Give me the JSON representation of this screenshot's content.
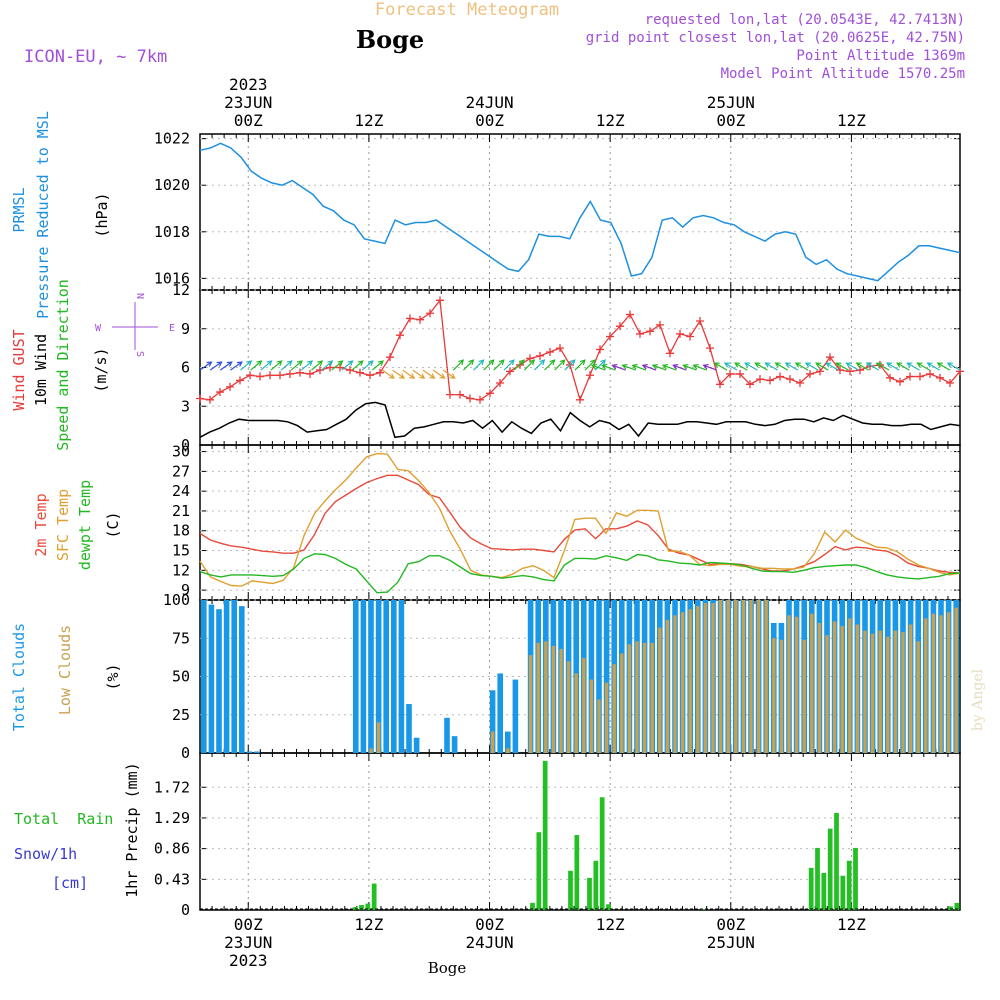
{
  "header": {
    "title": "Forecast Meteogram",
    "location": "Boge",
    "model": "ICON-EU, ~ 7km",
    "requested": "requested lon,lat (20.0543E, 42.7413N)",
    "closest": "grid point closest lon,lat (20.0625E, 42.75N)",
    "point_altitude": "Point Altitude 1369m",
    "model_altitude": "Model Point Altitude 1570.25m",
    "footer_location": "Boge",
    "credit": "by Angel"
  },
  "time_axis": {
    "start_index": -4,
    "end_index": 59,
    "top_labels": [
      {
        "i": 0,
        "lines": [
          "2023",
          "23JUN",
          "00Z"
        ]
      },
      {
        "i": 10,
        "lines": [
          "12Z"
        ]
      },
      {
        "i": 20,
        "lines": [
          "24JUN",
          "00Z"
        ]
      },
      {
        "i": 30,
        "lines": [
          "12Z"
        ]
      },
      {
        "i": 40,
        "lines": [
          "25JUN",
          "00Z"
        ]
      },
      {
        "i": 50,
        "lines": [
          "12Z"
        ]
      }
    ],
    "bottom_labels": [
      {
        "i": 0,
        "lines": [
          "00Z",
          "23JUN",
          "2023"
        ]
      },
      {
        "i": 10,
        "lines": [
          "12Z"
        ]
      },
      {
        "i": 20,
        "lines": [
          "00Z",
          "24JUN"
        ]
      },
      {
        "i": 30,
        "lines": [
          "12Z"
        ]
      },
      {
        "i": 40,
        "lines": [
          "00Z",
          "25JUN"
        ]
      },
      {
        "i": 50,
        "lines": [
          "12Z"
        ]
      }
    ]
  },
  "colors": {
    "pressure": "#1e90e0",
    "gust": "#e83a3a",
    "wind": "#000000",
    "temp2m": "#e84a3a",
    "sfc": "#e0a030",
    "dew": "#22b822",
    "total_clouds": "#1a98e8",
    "low_clouds": "#c8a050",
    "rain": "#22c022",
    "snow": "#3a3ad0",
    "labels_purple": "#a050d8",
    "labels_orange": "#f0c080"
  },
  "chart_data": [
    {
      "type": "line",
      "panel": "pressure",
      "ylabel_lines": [
        "PRMSL",
        "Pressure Reduced to MSL",
        "(hPa)"
      ],
      "ylim": [
        1015.5,
        1022.2
      ],
      "yticks": [
        1016,
        1018,
        1020,
        1022
      ],
      "series": [
        {
          "values": [
            1021.5,
            1021.6,
            1021.8,
            1021.6,
            1021.2,
            1020.6,
            1020.3,
            1020.1,
            1020.0,
            1020.2,
            1019.9,
            1019.6,
            1019.1,
            1018.9,
            1018.5,
            1018.3,
            1017.7,
            1017.6,
            1017.5,
            1018.5,
            1018.3,
            1018.4,
            1018.4,
            1018.5,
            1018.2,
            1017.9,
            1017.6,
            1017.3,
            1017.0,
            1016.7,
            1016.4,
            1016.3,
            1016.8,
            1017.9,
            1017.8,
            1017.8,
            1017.7,
            1018.6,
            1019.3,
            1018.5,
            1018.4,
            1017.5,
            1016.1,
            1016.2,
            1016.9,
            1018.5,
            1018.6,
            1018.2,
            1018.6,
            1018.7,
            1018.6,
            1018.4,
            1018.3,
            1018.0,
            1017.8,
            1017.6,
            1017.9,
            1018.0,
            1017.9,
            1016.9,
            1016.6,
            1016.8,
            1016.4,
            1016.2,
            1016.1,
            1016.0,
            1015.9,
            1016.3,
            1016.7,
            1017.0,
            1017.4,
            1017.4,
            1017.3,
            1017.2,
            1017.1
          ]
        }
      ]
    },
    {
      "type": "line",
      "panel": "wind",
      "ylabel_lines": [
        "Wind GUST",
        "10m Wind",
        "Speed and Direction",
        "(m/s)"
      ],
      "compass": {
        "north": "N",
        "south": "S",
        "west": "W",
        "east": "E"
      },
      "ylim": [
        0,
        12
      ],
      "yticks": [
        0,
        3,
        6,
        9,
        12
      ],
      "series": [
        {
          "role": "gust",
          "values": [
            3.6,
            3.5,
            4.1,
            4.5,
            5.0,
            5.4,
            5.3,
            5.4,
            5.4,
            5.5,
            5.6,
            5.5,
            5.8,
            6.0,
            6.0,
            5.8,
            5.6,
            5.4,
            5.6,
            6.8,
            8.5,
            9.8,
            9.7,
            10.2,
            11.2,
            3.9,
            3.9,
            3.6,
            3.5,
            4.0,
            4.8,
            5.7,
            6.2,
            6.7,
            6.9,
            7.2,
            7.5,
            6.2,
            3.5,
            5.4,
            7.4,
            8.4,
            9.2,
            10.1,
            8.6,
            8.8,
            9.3,
            7.1,
            8.6,
            8.4,
            9.6,
            7.5,
            4.7,
            5.5,
            5.5,
            4.7,
            5.1,
            5.0,
            5.3,
            5.1,
            4.8,
            5.5,
            5.7,
            6.8,
            5.8,
            5.7,
            5.8,
            6.1,
            6.2,
            5.2,
            4.9,
            5.3,
            5.3,
            5.5,
            5.2,
            4.8,
            5.7
          ]
        },
        {
          "role": "wind",
          "values": [
            0.6,
            1.0,
            1.3,
            1.7,
            2.0,
            1.9,
            1.9,
            1.9,
            1.9,
            1.8,
            1.5,
            1.0,
            1.1,
            1.2,
            1.6,
            2.0,
            2.7,
            3.2,
            3.3,
            3.1,
            0.6,
            0.7,
            1.3,
            1.4,
            1.6,
            1.8,
            1.8,
            1.7,
            1.9,
            1.3,
            1.9,
            1.0,
            1.8,
            1.3,
            0.9,
            1.7,
            2.0,
            1.1,
            2.5,
            1.9,
            1.4,
            1.9,
            1.7,
            1.2,
            1.6,
            0.7,
            1.7,
            1.6,
            1.6,
            1.6,
            1.8,
            1.8,
            1.7,
            1.6,
            1.8,
            1.8,
            1.8,
            1.6,
            1.5,
            1.6,
            1.9,
            2.0,
            2.0,
            1.8,
            2.1,
            1.9,
            2.3,
            2.0,
            1.7,
            1.6,
            1.6,
            1.5,
            1.5,
            1.6,
            1.6,
            1.2,
            1.4,
            1.6,
            1.5
          ]
        }
      ]
    },
    {
      "type": "line",
      "panel": "temperature",
      "ylabel_lines": [
        "2m Temp",
        "SFC Temp",
        "dewpt Temp",
        "(C)"
      ],
      "ylim": [
        7.5,
        31
      ],
      "yticks": [
        9,
        12,
        15,
        18,
        21,
        24,
        27,
        30
      ],
      "series": [
        {
          "role": "temp2m",
          "values": [
            17.6,
            16.6,
            16.1,
            15.7,
            15.5,
            15.2,
            14.9,
            14.8,
            14.6,
            14.6,
            15.1,
            17.4,
            20.6,
            22.4,
            23.4,
            24.4,
            25.3,
            25.9,
            26.4,
            26.4,
            25.7,
            25.0,
            23.5,
            23.0,
            20.8,
            18.5,
            16.9,
            16.0,
            15.3,
            15.2,
            15.1,
            15.2,
            15.2,
            15.0,
            14.8,
            16.7,
            18.1,
            18.3,
            16.8,
            18.3,
            18.3,
            18.7,
            19.5,
            18.9,
            17.3,
            15.2,
            14.6,
            14.3,
            13.6,
            12.9,
            13.0,
            13.0,
            12.9,
            12.6,
            12.2,
            11.9,
            11.9,
            12.2,
            12.7,
            13.3,
            14.4,
            15.6,
            15.1,
            15.5,
            15.4,
            15.1,
            14.9,
            14.2,
            13.1,
            12.6,
            12.3,
            11.9,
            11.7,
            11.6
          ]
        },
        {
          "role": "sfc",
          "values": [
            13.4,
            11.0,
            10.3,
            9.7,
            9.6,
            10.4,
            10.2,
            10.0,
            10.5,
            12.4,
            17.3,
            20.6,
            22.5,
            24.2,
            25.7,
            27.5,
            29.2,
            29.7,
            29.6,
            27.3,
            27.1,
            25.6,
            23.8,
            21.4,
            17.9,
            15.2,
            12.0,
            11.3,
            11.1,
            10.9,
            11.4,
            12.3,
            12.7,
            12.0,
            10.9,
            15.0,
            19.7,
            19.9,
            19.9,
            17.6,
            20.7,
            20.2,
            21.1,
            21.1,
            21.0,
            14.9,
            14.9,
            14.3,
            12.9,
            12.7,
            12.9,
            12.9,
            12.6,
            12.6,
            12.3,
            12.3,
            12.2,
            12.2,
            12.5,
            14.5,
            17.8,
            16.3,
            18.1,
            16.9,
            16.2,
            15.5,
            15.4,
            14.8,
            13.7,
            12.8,
            12.3,
            11.7,
            11.3,
            11.6
          ]
        },
        {
          "role": "dew",
          "values": [
            11.8,
            11.3,
            11.0,
            11.3,
            11.3,
            11.3,
            11.2,
            11.1,
            11.2,
            12.2,
            13.8,
            14.5,
            14.4,
            13.8,
            12.9,
            12.2,
            10.4,
            8.6,
            8.7,
            10.2,
            13.0,
            13.3,
            14.2,
            14.2,
            13.5,
            12.5,
            11.5,
            11.2,
            11.1,
            10.8,
            11.0,
            11.2,
            11.0,
            10.6,
            10.4,
            12.8,
            13.8,
            13.8,
            13.7,
            14.2,
            13.9,
            13.5,
            14.4,
            14.2,
            13.6,
            13.4,
            13.1,
            13.0,
            12.8,
            13.2,
            13.1,
            13.0,
            12.8,
            12.3,
            11.9,
            11.8,
            11.8,
            11.7,
            12.0,
            12.4,
            12.6,
            12.7,
            12.8,
            12.8,
            12.4,
            11.8,
            11.3,
            11.0,
            10.8,
            10.7,
            10.9,
            11.1,
            11.5,
            11.6
          ]
        }
      ]
    },
    {
      "type": "bar",
      "panel": "clouds",
      "ylabel_lines": [
        "Total Clouds",
        "Low Clouds",
        "(%)"
      ],
      "ylim": [
        0,
        100
      ],
      "yticks": [
        0,
        25,
        50,
        75,
        100
      ],
      "series": [
        {
          "role": "total",
          "values": [
            100,
            97,
            94,
            100,
            100,
            96,
            1,
            1,
            0,
            0,
            0,
            0,
            0,
            0,
            0,
            0,
            0,
            0,
            0,
            0,
            100,
            100,
            100,
            100,
            100,
            100,
            100,
            32,
            10,
            0,
            0,
            0,
            23,
            11,
            0,
            0,
            0,
            0,
            41,
            52,
            14,
            48,
            0,
            100,
            100,
            100,
            100,
            100,
            100,
            100,
            100,
            100,
            100,
            100,
            100,
            100,
            100,
            100,
            100,
            100,
            100,
            100,
            100,
            100,
            100,
            100,
            100,
            100,
            100,
            100,
            100,
            100,
            100,
            100,
            100,
            85,
            85,
            100,
            100,
            100,
            100,
            100,
            100,
            100,
            100,
            100,
            100,
            100,
            100,
            100,
            100,
            100,
            100,
            100,
            100,
            100,
            100,
            100,
            100,
            100
          ]
        },
        {
          "role": "low",
          "values": [
            0,
            0,
            0,
            0,
            0,
            0,
            0,
            0,
            0,
            0,
            0,
            0,
            0,
            0,
            0,
            0,
            0,
            0,
            0,
            0,
            0,
            0,
            3,
            20,
            0,
            0,
            0,
            0,
            0,
            0,
            0,
            0,
            0,
            0,
            0,
            0,
            0,
            0,
            14,
            0,
            3,
            0,
            0,
            64,
            72,
            73,
            70,
            68,
            60,
            52,
            62,
            48,
            35,
            46,
            58,
            65,
            71,
            73,
            72,
            72,
            82,
            87,
            90,
            92,
            94,
            96,
            98,
            98,
            100,
            100,
            100,
            100,
            100,
            100,
            100,
            75,
            74,
            90,
            89,
            74,
            91,
            85,
            77,
            86,
            83,
            88,
            84,
            80,
            78,
            80,
            76,
            80,
            79,
            84,
            73,
            88,
            91,
            90,
            92,
            95
          ]
        }
      ]
    },
    {
      "type": "bar",
      "panel": "precip",
      "ylabel_lines": [
        "1hr Precip (mm)"
      ],
      "left_labels": [
        "Total  Rain",
        "Snow/1h",
        "[cm]"
      ],
      "ylim": [
        0,
        2.2
      ],
      "yticks": [
        0,
        0.43,
        0.86,
        1.29,
        1.72
      ],
      "series": [
        {
          "role": "rain",
          "values": [
            0,
            0,
            0,
            0,
            0,
            0,
            0,
            0,
            0,
            0,
            0,
            0,
            0,
            0,
            0,
            0,
            0,
            0,
            0,
            0,
            0,
            0,
            0,
            0,
            0.04,
            0.07,
            0.09,
            0.37,
            0,
            0,
            0,
            0,
            0,
            0,
            0,
            0,
            0,
            0,
            0,
            0,
            0,
            0,
            0,
            0,
            0,
            0,
            0,
            0,
            0,
            0,
            0,
            0,
            0.1,
            1.09,
            2.09,
            0,
            0,
            0,
            0.55,
            1.05,
            0,
            0.45,
            0.69,
            1.58,
            0.08,
            0,
            0,
            0,
            0,
            0,
            0,
            0,
            0,
            0,
            0,
            0,
            0,
            0,
            0,
            0.01,
            0,
            0,
            0,
            0,
            0,
            0,
            0,
            0,
            0,
            0,
            0,
            0,
            0,
            0,
            0,
            0,
            0.59,
            0.87,
            0.52,
            1.14,
            1.36,
            0.48,
            0.69,
            0.87,
            0,
            0,
            0,
            0,
            0,
            0,
            0,
            0,
            0,
            0,
            0,
            0,
            0,
            0,
            0.05,
            0.1
          ]
        }
      ]
    }
  ]
}
